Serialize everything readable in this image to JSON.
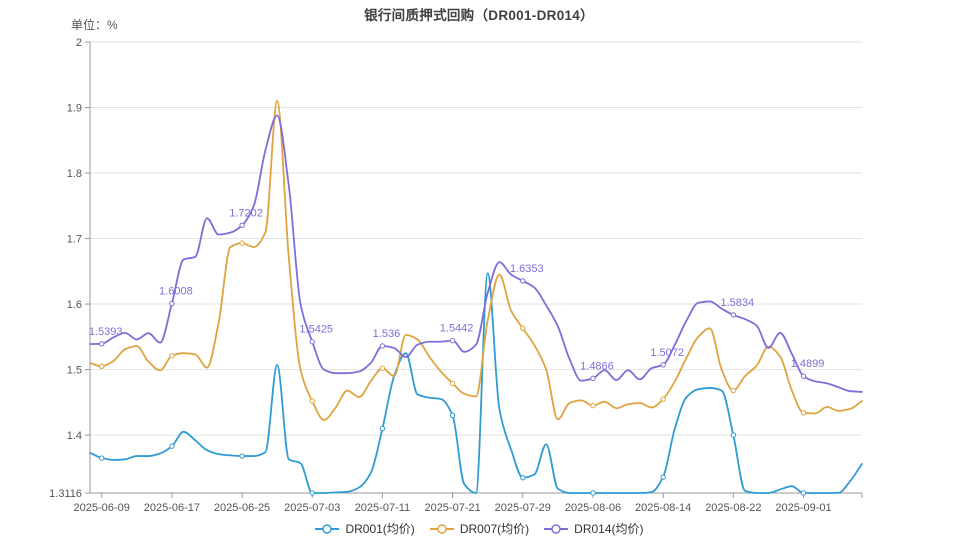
{
  "header": {
    "title": "银行间质押式回购（DR001-DR014）",
    "unit_label": "单位：%"
  },
  "colors": {
    "dr001": "#2f9bd4",
    "dr007": "#dfa43f",
    "dr014": "#7d6ed8",
    "grid": "#e2e2e2",
    "axis": "#999999",
    "tick_text": "#555555"
  },
  "legend": {
    "items": [
      {
        "key": "dr001",
        "label": "DR001(均价)",
        "color": "#2f9bd4"
      },
      {
        "key": "dr007",
        "label": "DR007(均价)",
        "color": "#dfa43f"
      },
      {
        "key": "dr014",
        "label": "DR014(均价)",
        "color": "#7d6ed8"
      }
    ]
  },
  "chart_data": {
    "type": "line",
    "title": "银行间质押式回购（DR001-DR014）",
    "unit": "%",
    "grid": true,
    "legend_position": "bottom",
    "smooth": true,
    "ylim": [
      1.3116,
      2.0
    ],
    "y_ticks": [
      {
        "value": 2.0,
        "label": "2"
      },
      {
        "value": 1.9,
        "label": "1.9"
      },
      {
        "value": 1.8,
        "label": "1.8"
      },
      {
        "value": 1.7,
        "label": "1.7"
      },
      {
        "value": 1.6,
        "label": "1.6"
      },
      {
        "value": 1.5,
        "label": "1.5"
      },
      {
        "value": 1.4,
        "label": "1.4"
      },
      {
        "value": 1.3116,
        "label": "1.3116"
      }
    ],
    "n_points": 67,
    "x_tick_indices": [
      1,
      7,
      13,
      19,
      25,
      31,
      37,
      43,
      49,
      55,
      61
    ],
    "x_tick_labels": [
      "2025-06-09",
      "2025-06-17",
      "2025-06-25",
      "2025-07-03",
      "2025-07-11",
      "2025-07-21",
      "2025-07-29",
      "2025-08-06",
      "2025-08-14",
      "2025-08-22",
      "2025-09-01"
    ],
    "series": [
      {
        "name": "DR001(均价)",
        "key": "dr001",
        "color": "#2f9bd4",
        "values": [
          1.373,
          1.365,
          1.362,
          1.363,
          1.368,
          1.368,
          1.372,
          1.383,
          1.405,
          1.392,
          1.377,
          1.371,
          1.369,
          1.368,
          1.368,
          1.374,
          1.507,
          1.363,
          1.357,
          1.3116,
          1.3116,
          1.3125,
          1.3135,
          1.32,
          1.342,
          1.41,
          1.49,
          1.525,
          1.462,
          1.457,
          1.455,
          1.43,
          1.325,
          1.3116,
          1.647,
          1.44,
          1.378,
          1.335,
          1.34,
          1.386,
          1.318,
          1.3116,
          1.3116,
          1.3116,
          1.3116,
          1.3116,
          1.3116,
          1.3116,
          1.313,
          1.336,
          1.41,
          1.458,
          1.47,
          1.472,
          1.468,
          1.4,
          1.315,
          1.3116,
          1.3116,
          1.317,
          1.322,
          1.3116,
          1.3116,
          1.3116,
          1.312,
          1.33,
          1.356
        ]
      },
      {
        "name": "DR007(均价)",
        "key": "dr007",
        "color": "#dfa43f",
        "values": [
          1.51,
          1.505,
          1.513,
          1.531,
          1.536,
          1.512,
          1.499,
          1.521,
          1.525,
          1.523,
          1.503,
          1.572,
          1.687,
          1.693,
          1.687,
          1.71,
          1.91,
          1.67,
          1.5,
          1.452,
          1.423,
          1.442,
          1.468,
          1.458,
          1.482,
          1.502,
          1.49,
          1.553,
          1.546,
          1.52,
          1.497,
          1.479,
          1.463,
          1.459,
          1.575,
          1.645,
          1.59,
          1.563,
          1.537,
          1.5,
          1.424,
          1.449,
          1.453,
          1.445,
          1.451,
          1.441,
          1.447,
          1.449,
          1.442,
          1.455,
          1.482,
          1.518,
          1.55,
          1.563,
          1.5,
          1.468,
          1.49,
          1.506,
          1.535,
          1.52,
          1.468,
          1.434,
          1.433,
          1.443,
          1.437,
          1.44,
          1.452
        ]
      },
      {
        "name": "DR014(均价)",
        "key": "dr014",
        "color": "#7d6ed8",
        "values": [
          1.539,
          1.5393,
          1.549,
          1.556,
          1.546,
          1.5555,
          1.541,
          1.6008,
          1.668,
          1.672,
          1.731,
          1.706,
          1.709,
          1.7202,
          1.75,
          1.835,
          1.888,
          1.78,
          1.6,
          1.5425,
          1.5,
          1.4945,
          1.4945,
          1.497,
          1.51,
          1.536,
          1.533,
          1.519,
          1.538,
          1.5425,
          1.5425,
          1.5442,
          1.527,
          1.538,
          1.617,
          1.664,
          1.645,
          1.6353,
          1.625,
          1.598,
          1.566,
          1.516,
          1.483,
          1.4866,
          1.499,
          1.484,
          1.499,
          1.485,
          1.502,
          1.5072,
          1.538,
          1.575,
          1.602,
          1.604,
          1.593,
          1.5834,
          1.577,
          1.567,
          1.533,
          1.556,
          1.524,
          1.4899,
          1.482,
          1.479,
          1.473,
          1.467,
          1.466
        ],
        "point_labels": [
          {
            "index": 1,
            "text": "1.5393"
          },
          {
            "index": 7,
            "text": "1.6008"
          },
          {
            "index": 13,
            "text": "1.7202"
          },
          {
            "index": 19,
            "text": "1.5425"
          },
          {
            "index": 25,
            "text": "1.536"
          },
          {
            "index": 31,
            "text": "1.5442"
          },
          {
            "index": 37,
            "text": "1.6353"
          },
          {
            "index": 43,
            "text": "1.4866"
          },
          {
            "index": 49,
            "text": "1.5072"
          },
          {
            "index": 55,
            "text": "1.5834"
          },
          {
            "index": 61,
            "text": "1.4899"
          }
        ]
      }
    ]
  }
}
